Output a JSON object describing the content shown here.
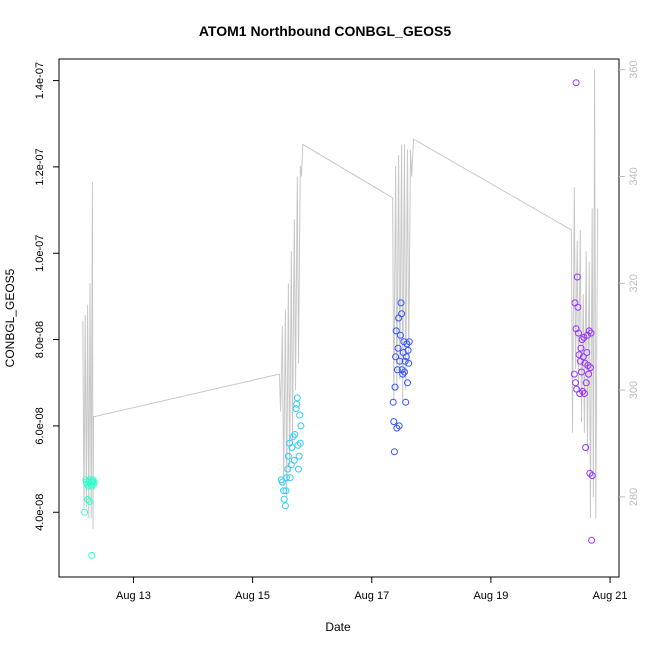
{
  "chart_data": {
    "type": "scatter",
    "title": "ATOM1 Northbound CONBGL_GEOS5",
    "xlabel": "Date",
    "ylabel": "CONBGL_GEOS5",
    "x_unit": "days in August (decimal)",
    "xlim": [
      11.75,
      21.15
    ],
    "ylim": [
      2.5e-08,
      1.45e-07
    ],
    "y2lim": [
      265,
      362
    ],
    "x_ticks": [
      {
        "value": 13,
        "label": "Aug 13"
      },
      {
        "value": 15,
        "label": "Aug 15"
      },
      {
        "value": 17,
        "label": "Aug 17"
      },
      {
        "value": 19,
        "label": "Aug 19"
      },
      {
        "value": 21,
        "label": "Aug 21"
      }
    ],
    "y_ticks": [
      {
        "value": 4e-08,
        "label": "4.0e-08"
      },
      {
        "value": 6e-08,
        "label": "6.0e-08"
      },
      {
        "value": 8e-08,
        "label": "8.0e-08"
      },
      {
        "value": 1e-07,
        "label": "1.0e-07"
      },
      {
        "value": 1.2e-07,
        "label": "1.2e-07"
      },
      {
        "value": 1.4e-07,
        "label": "1.4e-07"
      }
    ],
    "y2_ticks": [
      {
        "value": 280,
        "label": "280"
      },
      {
        "value": 300,
        "label": "300"
      },
      {
        "value": 320,
        "label": "320"
      },
      {
        "value": 340,
        "label": "340"
      },
      {
        "value": 360,
        "label": "360"
      }
    ],
    "grid": false,
    "secondary_line": {
      "color": "#c8c8c8",
      "axis": "right",
      "points": [
        [
          12.15,
          313
        ],
        [
          12.17,
          278
        ],
        [
          12.19,
          314
        ],
        [
          12.21,
          278
        ],
        [
          12.23,
          316
        ],
        [
          12.25,
          276
        ],
        [
          12.27,
          320
        ],
        [
          12.29,
          276
        ],
        [
          12.31,
          339
        ],
        [
          12.32,
          274
        ],
        [
          12.33,
          295
        ],
        [
          15.45,
          303
        ],
        [
          15.47,
          296
        ],
        [
          15.5,
          312
        ],
        [
          15.52,
          282
        ],
        [
          15.55,
          315
        ],
        [
          15.57,
          280
        ],
        [
          15.6,
          320
        ],
        [
          15.62,
          285
        ],
        [
          15.65,
          326
        ],
        [
          15.67,
          290
        ],
        [
          15.7,
          332
        ],
        [
          15.72,
          300
        ],
        [
          15.75,
          340
        ],
        [
          15.77,
          305
        ],
        [
          15.8,
          342
        ],
        [
          15.82,
          340
        ],
        [
          15.84,
          346
        ],
        [
          17.35,
          336
        ],
        [
          17.37,
          298
        ],
        [
          17.4,
          342
        ],
        [
          17.42,
          300
        ],
        [
          17.45,
          344
        ],
        [
          17.47,
          302
        ],
        [
          17.5,
          346
        ],
        [
          17.52,
          298
        ],
        [
          17.55,
          346
        ],
        [
          17.57,
          300
        ],
        [
          17.6,
          345
        ],
        [
          17.62,
          305
        ],
        [
          17.65,
          345
        ],
        [
          17.67,
          340
        ],
        [
          17.7,
          347
        ],
        [
          20.35,
          330
        ],
        [
          20.37,
          292
        ],
        [
          20.4,
          338
        ],
        [
          20.42,
          304
        ],
        [
          20.45,
          328
        ],
        [
          20.47,
          300
        ],
        [
          20.5,
          330
        ],
        [
          20.52,
          294
        ],
        [
          20.55,
          318
        ],
        [
          20.57,
          292
        ],
        [
          20.6,
          326
        ],
        [
          20.62,
          288
        ],
        [
          20.65,
          324
        ],
        [
          20.67,
          276
        ],
        [
          20.7,
          334
        ],
        [
          20.72,
          280
        ],
        [
          20.74,
          360
        ],
        [
          20.76,
          276
        ],
        [
          20.79,
          334
        ]
      ]
    },
    "series": [
      {
        "color": "#33ffcc",
        "points": [
          [
            12.18,
            4e-08
          ],
          [
            12.2,
            4.75e-08
          ],
          [
            12.21,
            4.7e-08
          ],
          [
            12.22,
            4.65e-08
          ],
          [
            12.23,
            4.3e-08
          ],
          [
            12.24,
            4.6e-08
          ],
          [
            12.25,
            4.7e-08
          ],
          [
            12.26,
            4.25e-08
          ],
          [
            12.27,
            4.75e-08
          ],
          [
            12.28,
            4.65e-08
          ],
          [
            12.29,
            4.7e-08
          ],
          [
            12.3,
            4.6e-08
          ],
          [
            12.31,
            4.7e-08
          ],
          [
            12.32,
            4.75e-08
          ],
          [
            12.33,
            4.65e-08
          ],
          [
            12.34,
            4.7e-08
          ],
          [
            12.3,
            3e-08
          ]
        ]
      },
      {
        "color": "#33ccff",
        "points": [
          [
            15.48,
            4.75e-08
          ],
          [
            15.5,
            4.7e-08
          ],
          [
            15.52,
            4.5e-08
          ],
          [
            15.53,
            4.3e-08
          ],
          [
            15.55,
            4.15e-08
          ],
          [
            15.56,
            4.5e-08
          ],
          [
            15.57,
            4.8e-08
          ],
          [
            15.59,
            5e-08
          ],
          [
            15.6,
            5.3e-08
          ],
          [
            15.62,
            5.6e-08
          ],
          [
            15.63,
            4.8e-08
          ],
          [
            15.65,
            5.1e-08
          ],
          [
            15.66,
            5.5e-08
          ],
          [
            15.68,
            5.75e-08
          ],
          [
            15.7,
            5.2e-08
          ],
          [
            15.71,
            5.8e-08
          ],
          [
            15.73,
            6.4e-08
          ],
          [
            15.74,
            6.5e-08
          ],
          [
            15.75,
            6.65e-08
          ],
          [
            15.76,
            5.55e-08
          ],
          [
            15.77,
            5e-08
          ],
          [
            15.78,
            5.3e-08
          ],
          [
            15.79,
            6.25e-08
          ],
          [
            15.8,
            5.6e-08
          ],
          [
            15.81,
            6e-08
          ]
        ]
      },
      {
        "color": "#3355ff",
        "points": [
          [
            17.36,
            6.55e-08
          ],
          [
            17.37,
            6.1e-08
          ],
          [
            17.38,
            5.4e-08
          ],
          [
            17.39,
            6.9e-08
          ],
          [
            17.4,
            7.6e-08
          ],
          [
            17.41,
            8.2e-08
          ],
          [
            17.42,
            5.95e-08
          ],
          [
            17.43,
            7.3e-08
          ],
          [
            17.44,
            7.8e-08
          ],
          [
            17.45,
            8.5e-08
          ],
          [
            17.46,
            6e-08
          ],
          [
            17.47,
            7.5e-08
          ],
          [
            17.48,
            8.1e-08
          ],
          [
            17.49,
            8.85e-08
          ],
          [
            17.5,
            8.6e-08
          ],
          [
            17.51,
            7.3e-08
          ],
          [
            17.52,
            7.2e-08
          ],
          [
            17.53,
            7.7e-08
          ],
          [
            17.54,
            7.95e-08
          ],
          [
            17.55,
            7.25e-08
          ],
          [
            17.56,
            7.5e-08
          ],
          [
            17.57,
            6.55e-08
          ],
          [
            17.58,
            7.6e-08
          ],
          [
            17.59,
            7.9e-08
          ],
          [
            17.6,
            7e-08
          ],
          [
            17.61,
            7.75e-08
          ],
          [
            17.62,
            7.45e-08
          ],
          [
            17.63,
            7.95e-08
          ]
        ]
      },
      {
        "color": "#9933ff",
        "points": [
          [
            20.4,
            7.2e-08
          ],
          [
            20.41,
            8.85e-08
          ],
          [
            20.42,
            7e-08
          ],
          [
            20.43,
            8.25e-08
          ],
          [
            20.44,
            6.85e-08
          ],
          [
            20.45,
            9.45e-08
          ],
          [
            20.46,
            8.75e-08
          ],
          [
            20.47,
            8.15e-08
          ],
          [
            20.48,
            7.65e-08
          ],
          [
            20.49,
            6.75e-08
          ],
          [
            20.5,
            7.5e-08
          ],
          [
            20.51,
            7.8e-08
          ],
          [
            20.52,
            7.25e-08
          ],
          [
            20.53,
            8e-08
          ],
          [
            20.54,
            6.8e-08
          ],
          [
            20.55,
            7.6e-08
          ],
          [
            20.56,
            8.05e-08
          ],
          [
            20.57,
            6.75e-08
          ],
          [
            20.58,
            7.45e-08
          ],
          [
            20.59,
            5.5e-08
          ],
          [
            20.6,
            7e-08
          ],
          [
            20.61,
            7.7e-08
          ],
          [
            20.62,
            8.1e-08
          ],
          [
            20.63,
            7.4e-08
          ],
          [
            20.64,
            7.2e-08
          ],
          [
            20.65,
            8.2e-08
          ],
          [
            20.66,
            4.9e-08
          ],
          [
            20.67,
            7.35e-08
          ],
          [
            20.68,
            8.15e-08
          ],
          [
            20.69,
            3.35e-08
          ],
          [
            20.7,
            4.85e-08
          ],
          [
            20.43,
            1.395e-07
          ]
        ]
      }
    ]
  }
}
